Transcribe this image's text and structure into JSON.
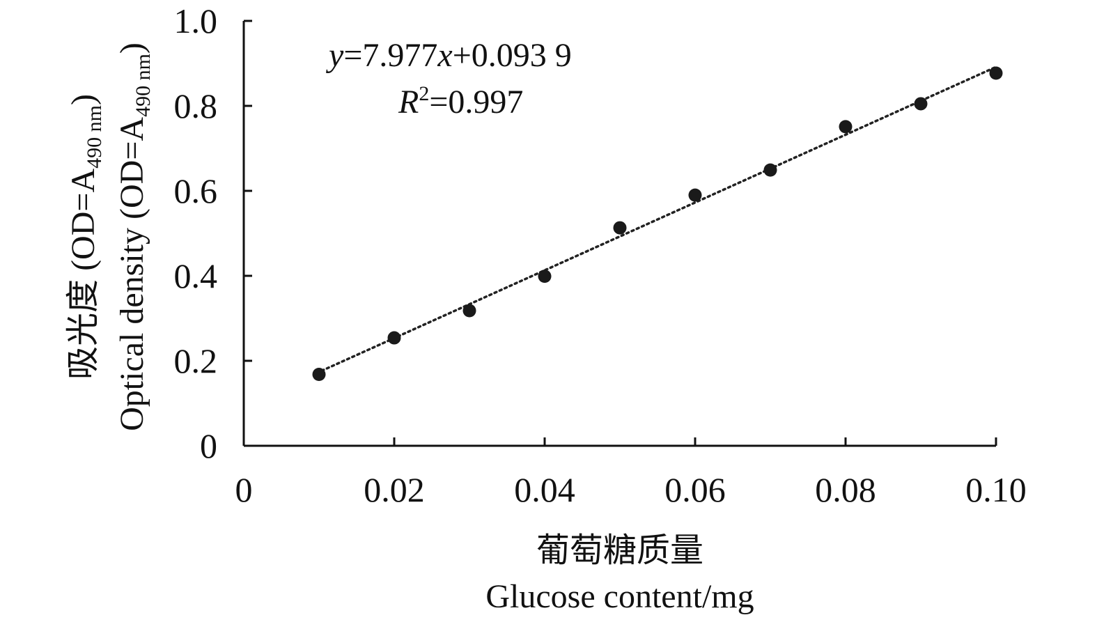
{
  "chart_data": {
    "type": "scatter",
    "xlim": [
      0,
      0.1
    ],
    "ylim": [
      0,
      1.0
    ],
    "x_ticks": [
      0,
      0.02,
      0.04,
      0.06,
      0.08,
      0.1
    ],
    "x_tick_labels": [
      "0",
      "0.02",
      "0.04",
      "0.06",
      "0.08",
      "0.10"
    ],
    "y_ticks": [
      0,
      0.2,
      0.4,
      0.6,
      0.8,
      1.0
    ],
    "y_tick_labels": [
      "0",
      "0.2",
      "0.4",
      "0.6",
      "0.8",
      "1.0"
    ],
    "xlabel_cn": "葡萄糖质量",
    "xlabel_en": "Glucose content/mg",
    "ylabel_cn": "吸光度",
    "ylabel_en": "Optical density",
    "ylabel_paren_pre": "(OD=A",
    "ylabel_paren_sub": "490 nm",
    "ylabel_paren_post": ")",
    "grid": false,
    "series": [
      {
        "x": [
          0.01,
          0.02,
          0.03,
          0.04,
          0.05,
          0.06,
          0.07,
          0.08,
          0.09,
          0.1
        ],
        "y": [
          0.168,
          0.254,
          0.318,
          0.399,
          0.513,
          0.59,
          0.649,
          0.751,
          0.805,
          0.877
        ],
        "marker_color": "#1a1a1a"
      }
    ],
    "trendline": {
      "type": "linear",
      "slope": 7.977,
      "intercept": 0.0939,
      "x_range": [
        0.01,
        0.1
      ],
      "style": "dotted",
      "color": "#222222"
    },
    "annotations": {
      "eq_y": "y",
      "eq_mid": "=7.977",
      "eq_x": "x",
      "eq_tail": "+0.093 9",
      "r2_R": "R",
      "r2_sup": "2",
      "r2_tail": "=0.997"
    }
  }
}
